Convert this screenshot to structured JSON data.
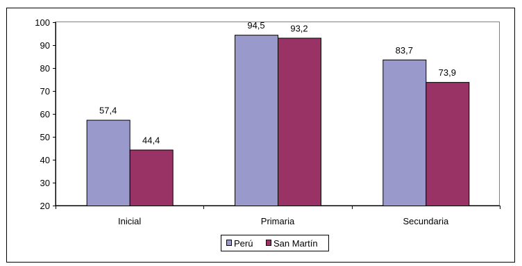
{
  "chart_data": {
    "type": "bar",
    "categories": [
      "Inicial",
      "Primaria",
      "Secundaria"
    ],
    "series": [
      {
        "name": "Perú",
        "values": [
          57.4,
          94.5,
          83.7
        ],
        "color": "#9999CC",
        "labels": [
          "57,4",
          "94,5",
          "83,7"
        ]
      },
      {
        "name": "San Martín",
        "values": [
          44.4,
          93.2,
          73.9
        ],
        "color": "#993366",
        "labels": [
          "44,4",
          "93,2",
          "73,9"
        ]
      }
    ],
    "ylim": [
      20,
      100
    ],
    "yticks": [
      20,
      30,
      40,
      50,
      60,
      70,
      80,
      90,
      100
    ],
    "grid": false,
    "legend": "bottom-center",
    "plot_background": "#ffffff",
    "frame_color": "#000000"
  }
}
